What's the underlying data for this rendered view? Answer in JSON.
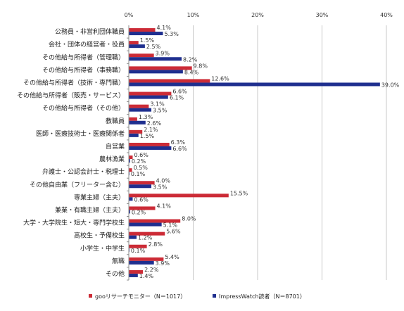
{
  "chart_data": {
    "type": "bar",
    "orientation": "horizontal",
    "title": "",
    "xlim": [
      0,
      40
    ],
    "x_ticks": [
      "0%",
      "10%",
      "20%",
      "30%",
      "40%"
    ],
    "x_tick_values": [
      0,
      10,
      20,
      30,
      40
    ],
    "grid": true,
    "legend_position": "bottom",
    "categories": [
      "公務員・非営利団体職員",
      "会社・団体の経営者・役員",
      "その他給与所得者（管理職）",
      "その他給与所得者（事務職）",
      "その他給与所得者（技術・専門職）",
      "その他給与所得者（販売・サービス）",
      "その他給与所得者（その他）",
      "教職員",
      "医師・医療技術士・医療関係者",
      "自営業",
      "農林漁業",
      "弁護士・公認会計士・税理士",
      "その他自由業（フリーター含む）",
      "専業主婦（主夫）",
      "兼業・有職主婦（主夫）",
      "大学・大学院生・短大・専門学校生",
      "高校生・予備校生",
      "小学生・中学生",
      "無職",
      "その他"
    ],
    "series": [
      {
        "name": "gooリサーチモニター（N＝1017）",
        "color": "#cc2b36",
        "values": [
          4.1,
          1.5,
          3.9,
          9.8,
          12.6,
          6.6,
          3.1,
          1.3,
          2.1,
          6.3,
          0.6,
          0.5,
          4.0,
          15.5,
          4.1,
          8.0,
          5.6,
          2.8,
          5.4,
          2.2
        ],
        "labels": [
          "4.1%",
          "1.5%",
          "3.9%",
          "9.8%",
          "12.6%",
          "6.6%",
          "3.1%",
          "1.3%",
          "2.1%",
          "6.3%",
          "0.6%",
          "0.5%",
          "4.0%",
          "15.5%",
          "4.1%",
          "8.0%",
          "5.6%",
          "2.8%",
          "5.4%",
          "2.2%"
        ]
      },
      {
        "name": "ImpressWatch読者（N＝8701）",
        "color": "#1f2f8f",
        "values": [
          5.3,
          2.5,
          8.2,
          8.4,
          39.0,
          6.1,
          3.5,
          2.6,
          1.5,
          6.6,
          0.2,
          0.1,
          3.5,
          0.6,
          0.2,
          5.1,
          1.2,
          0.1,
          3.9,
          1.4
        ],
        "labels": [
          "5.3%",
          "2.5%",
          "8.2%",
          "8.4%",
          "39.0%",
          "6.1%",
          "3.5%",
          "2.6%",
          "1.5%",
          "6.6%",
          "0.2%",
          "0.1%",
          "3.5%",
          "0.6%",
          "0.2%",
          "5.1%",
          "1.2%",
          "0.1%",
          "3.9%",
          "1.4%"
        ]
      }
    ]
  }
}
